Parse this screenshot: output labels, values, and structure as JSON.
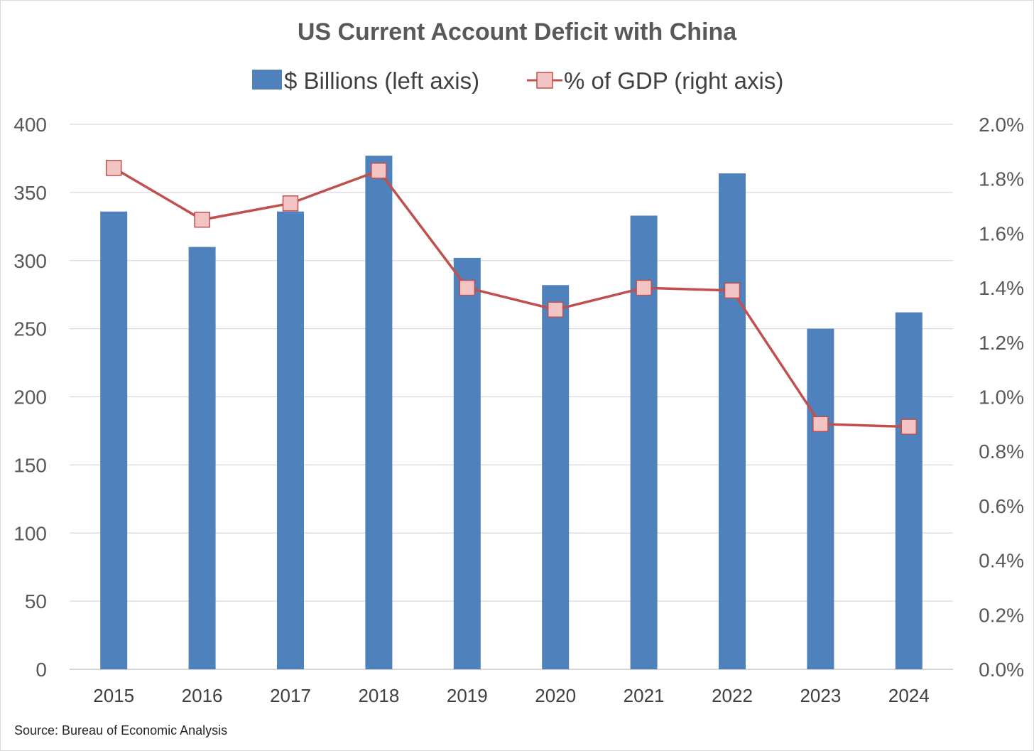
{
  "chart_data": {
    "type": "bar",
    "title": "US Current Account Deficit with China",
    "categories": [
      "2015",
      "2016",
      "2017",
      "2018",
      "2019",
      "2020",
      "2021",
      "2022",
      "2023",
      "2024"
    ],
    "series": [
      {
        "name": "$ Billions (left axis)",
        "type": "bar",
        "axis": "left",
        "color": "#4f81bd",
        "values": [
          336,
          310,
          336,
          377,
          302,
          282,
          333,
          364,
          250,
          262
        ]
      },
      {
        "name": "% of GDP (right axis)",
        "type": "line",
        "axis": "right",
        "color": "#c0504d",
        "marker_fill": "#f2c4c4",
        "values": [
          1.84,
          1.65,
          1.71,
          1.83,
          1.4,
          1.32,
          1.4,
          1.39,
          0.9,
          0.89
        ]
      }
    ],
    "left_axis": {
      "min": 0,
      "max": 400,
      "ticks": [
        "0",
        "50",
        "100",
        "150",
        "200",
        "250",
        "300",
        "350",
        "400"
      ]
    },
    "right_axis": {
      "min": 0,
      "max": 2.0,
      "ticks": [
        "0.0%",
        "0.2%",
        "0.4%",
        "0.6%",
        "0.8%",
        "1.0%",
        "1.2%",
        "1.4%",
        "1.6%",
        "1.8%",
        "2.0%"
      ]
    },
    "grid": true,
    "legend_position": "top",
    "source": "Source:  Bureau of Economic Analysis"
  }
}
